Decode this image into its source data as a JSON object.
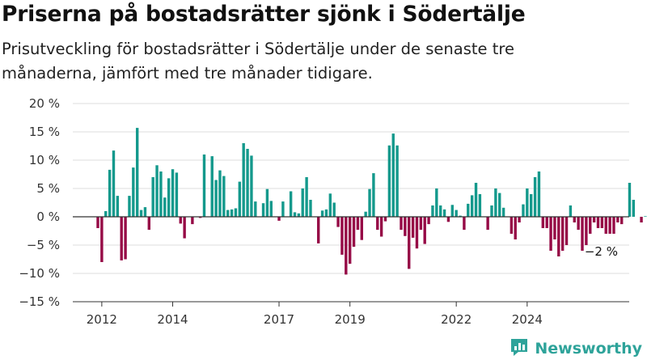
{
  "title": "Priserna på bostadsrätter sjönk i Södertälje",
  "subtitle": "Prisutveckling för bostadsrätter i Södertälje under de senaste tre månaderna, jämfört med tre månader tidigare.",
  "brand": {
    "name": "Newsworthy",
    "icon": "newsworthy-logo-icon"
  },
  "colors": {
    "positive": "#14998c",
    "negative": "#960a46",
    "grid": "#dedede",
    "axis": "#333333",
    "brand": "#2ea39a"
  },
  "chart_data": {
    "type": "bar",
    "title": "Priserna på bostadsrätter sjönk i Södertälje",
    "subtitle": "Prisutveckling för bostadsrätter i Södertälje under de senaste tre månaderna, jämfört med tre månader tidigare.",
    "xlabel": "",
    "ylabel": "",
    "ylim": [
      -15,
      20
    ],
    "y_ticks": [
      -15,
      -10,
      -5,
      0,
      5,
      10,
      15,
      20
    ],
    "y_tick_labels": [
      "−15 %",
      "−10 %",
      "−5 %",
      "0 %",
      "5 %",
      "10 %",
      "15 %",
      "20 %"
    ],
    "x_ticks": [
      {
        "label": "2012",
        "index": 1
      },
      {
        "label": "2014",
        "index": 19
      },
      {
        "label": "2017",
        "index": 46
      },
      {
        "label": "2019",
        "index": 64
      },
      {
        "label": "2022",
        "index": 91
      },
      {
        "label": "2024",
        "index": 109
      }
    ],
    "grid": true,
    "annotation": {
      "text": "−2 %",
      "value": -2
    },
    "values": [
      -2,
      -8,
      1,
      8.3,
      11.7,
      3.7,
      -7.7,
      -7.5,
      3.7,
      8.7,
      15.7,
      1.2,
      1.7,
      -2.3,
      7,
      9.1,
      8,
      3.4,
      6.8,
      8.4,
      7.8,
      -1.2,
      -3.8,
      0,
      -1.3,
      0,
      -0.2,
      11,
      0,
      10.7,
      6.5,
      8.2,
      7.2,
      1.2,
      1.3,
      1.5,
      6.2,
      13,
      12,
      10.8,
      2.7,
      0,
      2.4,
      4.9,
      2.8,
      0,
      -0.7,
      2.7,
      0,
      4.5,
      0.8,
      0.6,
      5,
      7,
      3,
      0,
      -4.7,
      1.1,
      1.3,
      4.1,
      2.5,
      -1.8,
      -6.7,
      -10.2,
      -8.3,
      -5.3,
      -2.3,
      -4.1,
      0.9,
      4.9,
      7.7,
      -2.3,
      -3.5,
      -0.8,
      12.6,
      14.7,
      12.6,
      -2.3,
      -3.4,
      -9.2,
      -3.7,
      -5.6,
      -2.3,
      -4.8,
      -1.3,
      2,
      5,
      2,
      1.3,
      -0.9,
      2.1,
      1.2,
      0.2,
      -2.3,
      2.3,
      3.8,
      6,
      4,
      0,
      -2.3,
      2,
      5,
      4.2,
      1.6,
      0,
      -3,
      -4,
      -1,
      2.2,
      5,
      4,
      7,
      8,
      -2,
      -2,
      -6,
      -4,
      -7,
      -6,
      -5,
      2,
      -1,
      -2.3,
      -6,
      -5,
      -3,
      -1,
      -2,
      -2,
      -3,
      -3,
      -3,
      -1,
      -1.3,
      0,
      6,
      3,
      0,
      -1,
      0.1,
      3,
      -1,
      -3,
      -2
    ]
  }
}
